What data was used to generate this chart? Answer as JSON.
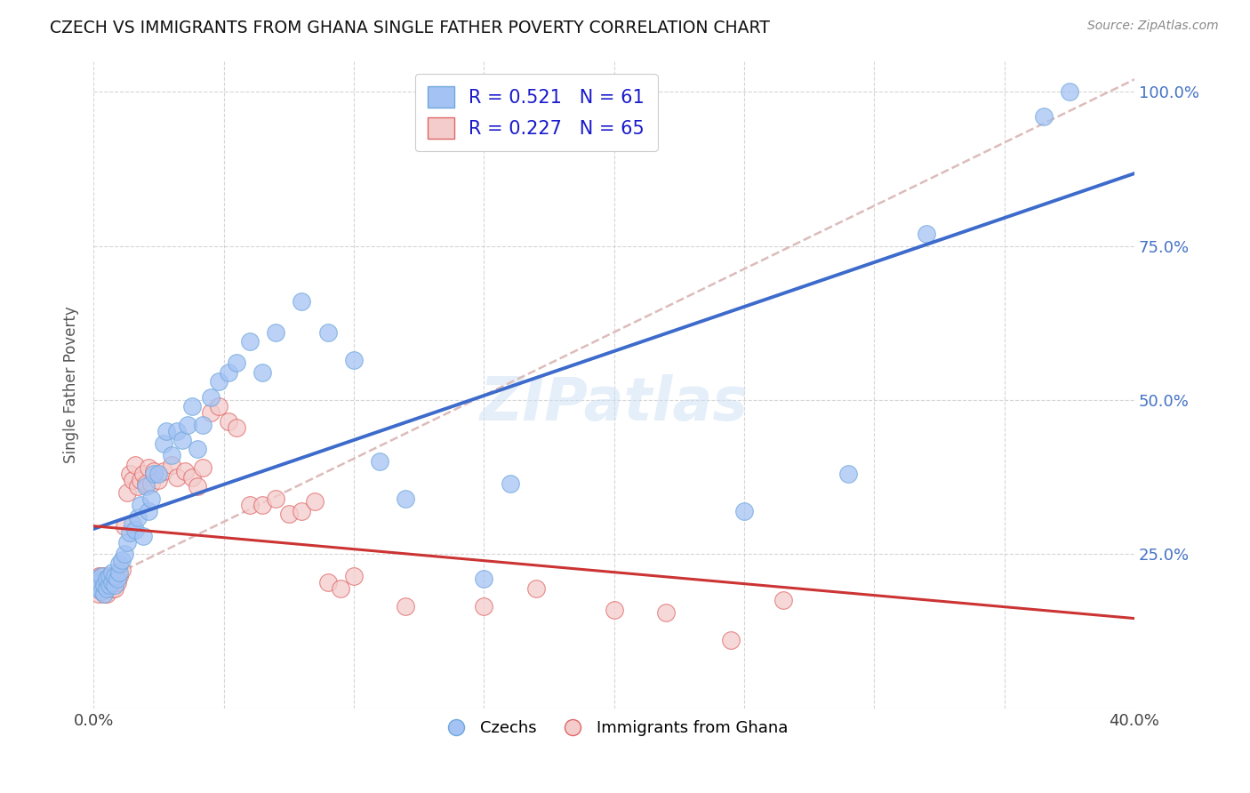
{
  "title": "CZECH VS IMMIGRANTS FROM GHANA SINGLE FATHER POVERTY CORRELATION CHART",
  "source": "Source: ZipAtlas.com",
  "ylabel_text": "Single Father Poverty",
  "xlim": [
    0.0,
    0.4
  ],
  "ylim": [
    0.0,
    1.05
  ],
  "czechs_color": "#a4c2f4",
  "czechs_edge_color": "#6fa8dc",
  "ghana_color": "#f4cccc",
  "ghana_edge_color": "#e06666",
  "trendline_czech_color": "#3d6bcc",
  "trendline_ghana_color": "#cc3333",
  "trendline_ref_color": "#ddbbbb",
  "R_czech": 0.521,
  "N_czech": 61,
  "R_ghana": 0.227,
  "N_ghana": 65,
  "legend_R_color": "#1a1acc",
  "watermark": "ZIPatlas",
  "czechs_x": [
    0.001,
    0.001,
    0.002,
    0.002,
    0.003,
    0.003,
    0.004,
    0.004,
    0.005,
    0.005,
    0.006,
    0.006,
    0.007,
    0.007,
    0.008,
    0.008,
    0.009,
    0.01,
    0.01,
    0.011,
    0.012,
    0.013,
    0.014,
    0.015,
    0.016,
    0.017,
    0.018,
    0.019,
    0.02,
    0.021,
    0.022,
    0.023,
    0.025,
    0.027,
    0.028,
    0.03,
    0.032,
    0.034,
    0.036,
    0.038,
    0.04,
    0.042,
    0.045,
    0.048,
    0.052,
    0.055,
    0.06,
    0.065,
    0.07,
    0.08,
    0.09,
    0.1,
    0.11,
    0.12,
    0.15,
    0.16,
    0.25,
    0.29,
    0.32,
    0.365,
    0.375
  ],
  "czechs_y": [
    0.2,
    0.21,
    0.195,
    0.205,
    0.19,
    0.215,
    0.185,
    0.2,
    0.195,
    0.21,
    0.2,
    0.215,
    0.205,
    0.22,
    0.2,
    0.215,
    0.21,
    0.22,
    0.235,
    0.24,
    0.25,
    0.27,
    0.285,
    0.3,
    0.29,
    0.31,
    0.33,
    0.28,
    0.36,
    0.32,
    0.34,
    0.38,
    0.38,
    0.43,
    0.45,
    0.41,
    0.45,
    0.435,
    0.46,
    0.49,
    0.42,
    0.46,
    0.505,
    0.53,
    0.545,
    0.56,
    0.595,
    0.545,
    0.61,
    0.66,
    0.61,
    0.565,
    0.4,
    0.34,
    0.21,
    0.365,
    0.32,
    0.38,
    0.77,
    0.96,
    1.0
  ],
  "ghana_x": [
    0.001,
    0.001,
    0.001,
    0.002,
    0.002,
    0.002,
    0.003,
    0.003,
    0.003,
    0.004,
    0.004,
    0.004,
    0.005,
    0.005,
    0.005,
    0.006,
    0.006,
    0.007,
    0.007,
    0.008,
    0.008,
    0.009,
    0.009,
    0.01,
    0.011,
    0.012,
    0.013,
    0.014,
    0.015,
    0.016,
    0.017,
    0.018,
    0.019,
    0.02,
    0.021,
    0.022,
    0.023,
    0.025,
    0.027,
    0.03,
    0.032,
    0.035,
    0.038,
    0.04,
    0.042,
    0.045,
    0.048,
    0.052,
    0.055,
    0.06,
    0.065,
    0.07,
    0.075,
    0.08,
    0.085,
    0.09,
    0.095,
    0.1,
    0.12,
    0.15,
    0.17,
    0.2,
    0.22,
    0.245,
    0.265
  ],
  "ghana_y": [
    0.195,
    0.2,
    0.21,
    0.185,
    0.2,
    0.215,
    0.19,
    0.2,
    0.215,
    0.185,
    0.2,
    0.215,
    0.185,
    0.2,
    0.21,
    0.195,
    0.215,
    0.195,
    0.21,
    0.195,
    0.215,
    0.205,
    0.22,
    0.215,
    0.225,
    0.295,
    0.35,
    0.38,
    0.37,
    0.395,
    0.36,
    0.37,
    0.38,
    0.365,
    0.39,
    0.365,
    0.385,
    0.37,
    0.385,
    0.395,
    0.375,
    0.385,
    0.375,
    0.36,
    0.39,
    0.48,
    0.49,
    0.465,
    0.455,
    0.33,
    0.33,
    0.34,
    0.315,
    0.32,
    0.335,
    0.205,
    0.195,
    0.215,
    0.165,
    0.165,
    0.195,
    0.16,
    0.155,
    0.11,
    0.175
  ]
}
